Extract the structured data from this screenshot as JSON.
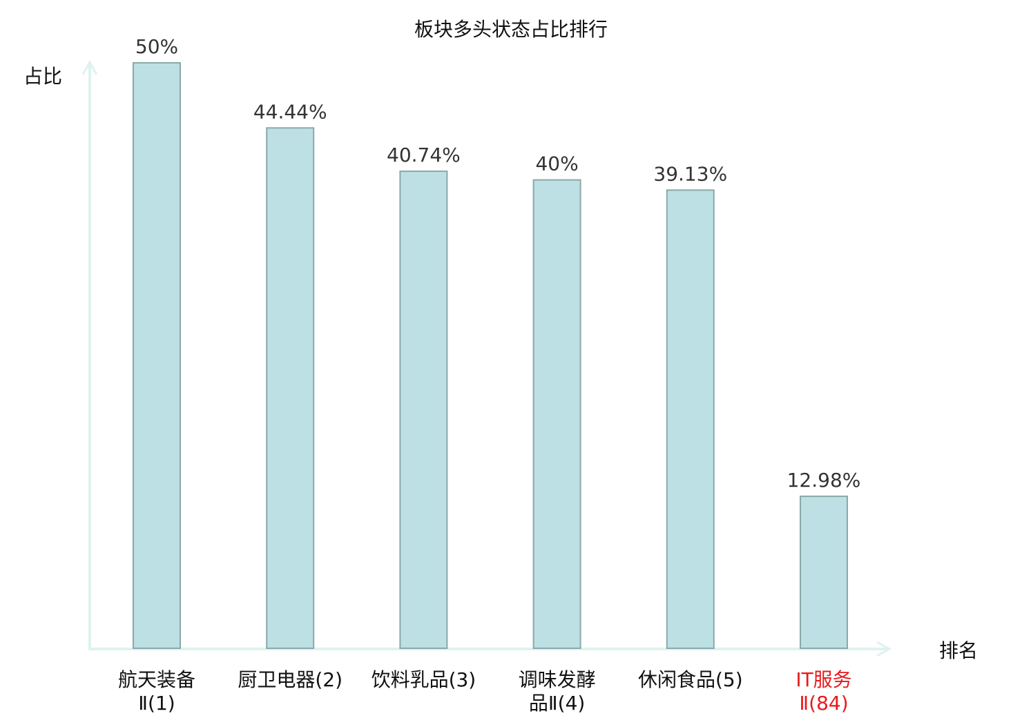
{
  "chart_data": {
    "type": "bar",
    "title": "板块多头状态占比排行",
    "ylabel": "占比",
    "xlabel": "排名",
    "categories": [
      [
        "航天装备",
        "Ⅱ(1)"
      ],
      [
        "厨卫电器(2)"
      ],
      [
        "饮料乳品(3)"
      ],
      [
        "调味发酵",
        "品Ⅱ(4)"
      ],
      [
        "休闲食品(5)"
      ],
      [
        "IT服务",
        "Ⅱ(84)"
      ]
    ],
    "values": [
      50,
      44.44,
      40.74,
      40,
      39.13,
      12.98
    ],
    "value_labels": [
      "50%",
      "44.44%",
      "40.74%",
      "40%",
      "39.13%",
      "12.98%"
    ],
    "highlight_index": 5,
    "ylim": [
      0,
      50
    ],
    "grid": false,
    "colors": {
      "bar_fill": "#bce0e3",
      "bar_stroke": "#8aa8a8",
      "axis": "#dff2ef",
      "highlight_label": "#e8191b",
      "label": "#111111"
    }
  }
}
